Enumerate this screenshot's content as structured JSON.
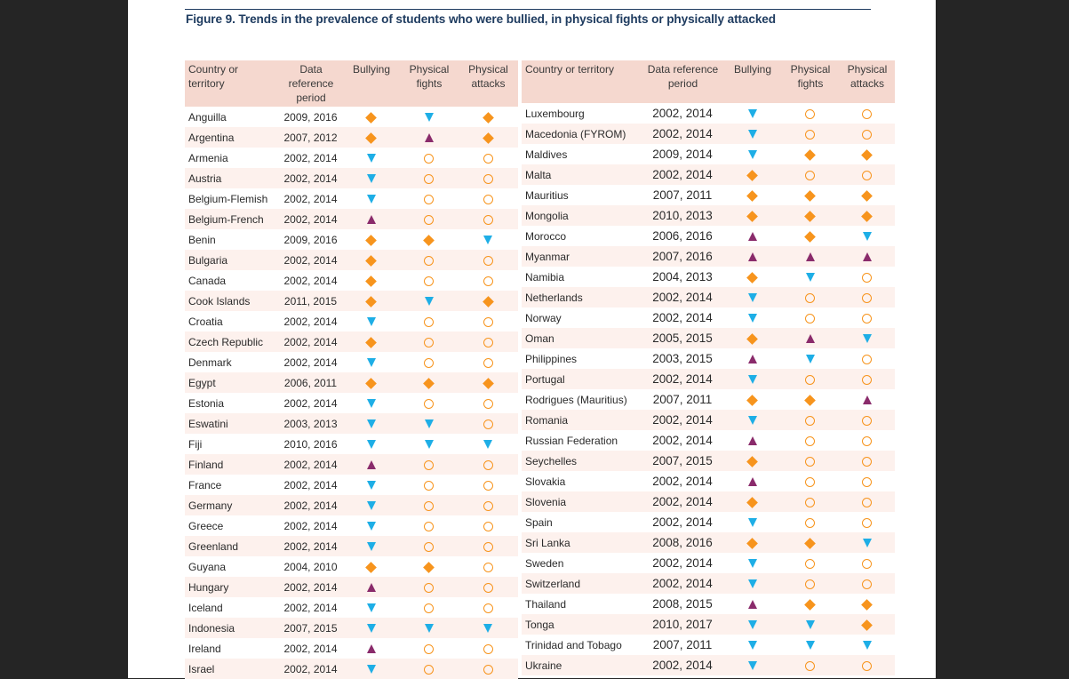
{
  "figure_title": "Figure 9. Trends in the prevalence of students who were bullied, in physical fights or physically attacked",
  "columns": {
    "country": "Country or territory",
    "period": "Data reference period",
    "bullying": "Bullying",
    "fights": "Physical fights",
    "attacks": "Physical attacks"
  },
  "symbol_icons": {
    "diamond": "orange-diamond-icon",
    "down": "blue-down-triangle-icon",
    "up": "purple-up-triangle-icon",
    "circle": "orange-open-circle-icon"
  },
  "colors": {
    "diamond": "#f7941d",
    "down": "#1eaee6",
    "up": "#8a2b6b",
    "circle": "#f7941d",
    "title": "#1f3c60",
    "header_bg": "#f5d8cf",
    "alt_row_bg": "#fdf1ed"
  },
  "left_rows": [
    {
      "country": "Anguilla",
      "period": "2009, 2016",
      "bullying": "diamond",
      "fights": "down",
      "attacks": "diamond"
    },
    {
      "country": "Argentina",
      "period": "2007, 2012",
      "bullying": "diamond",
      "fights": "up",
      "attacks": "diamond"
    },
    {
      "country": "Armenia",
      "period": "2002, 2014",
      "bullying": "down",
      "fights": "circle",
      "attacks": "circle"
    },
    {
      "country": "Austria",
      "period": "2002, 2014",
      "bullying": "down",
      "fights": "circle",
      "attacks": "circle"
    },
    {
      "country": "Belgium-Flemish",
      "period": "2002, 2014",
      "bullying": "down",
      "fights": "circle",
      "attacks": "circle"
    },
    {
      "country": "Belgium-French",
      "period": "2002, 2014",
      "bullying": "up",
      "fights": "circle",
      "attacks": "circle"
    },
    {
      "country": "Benin",
      "period": "2009, 2016",
      "bullying": "diamond",
      "fights": "diamond",
      "attacks": "down"
    },
    {
      "country": "Bulgaria",
      "period": "2002, 2014",
      "bullying": "diamond",
      "fights": "circle",
      "attacks": "circle"
    },
    {
      "country": "Canada",
      "period": "2002, 2014",
      "bullying": "diamond",
      "fights": "circle",
      "attacks": "circle"
    },
    {
      "country": "Cook Islands",
      "period": "2011, 2015",
      "bullying": "diamond",
      "fights": "down",
      "attacks": "diamond"
    },
    {
      "country": "Croatia",
      "period": "2002, 2014",
      "bullying": "down",
      "fights": "circle",
      "attacks": "circle"
    },
    {
      "country": "Czech Republic",
      "period": "2002, 2014",
      "bullying": "diamond",
      "fights": "circle",
      "attacks": "circle"
    },
    {
      "country": "Denmark",
      "period": "2002, 2014",
      "bullying": "down",
      "fights": "circle",
      "attacks": "circle"
    },
    {
      "country": "Egypt",
      "period": "2006, 2011",
      "bullying": "diamond",
      "fights": "diamond",
      "attacks": "diamond"
    },
    {
      "country": "Estonia",
      "period": "2002, 2014",
      "bullying": "down",
      "fights": "circle",
      "attacks": "circle"
    },
    {
      "country": "Eswatini",
      "period": "2003, 2013",
      "bullying": "down",
      "fights": "down",
      "attacks": "circle"
    },
    {
      "country": "Fiji",
      "period": "2010, 2016",
      "bullying": "down",
      "fights": "down",
      "attacks": "down"
    },
    {
      "country": "Finland",
      "period": "2002, 2014",
      "bullying": "up",
      "fights": "circle",
      "attacks": "circle"
    },
    {
      "country": "France",
      "period": "2002, 2014",
      "bullying": "down",
      "fights": "circle",
      "attacks": "circle"
    },
    {
      "country": "Germany",
      "period": "2002, 2014",
      "bullying": "down",
      "fights": "circle",
      "attacks": "circle"
    },
    {
      "country": "Greece",
      "period": "2002, 2014",
      "bullying": "down",
      "fights": "circle",
      "attacks": "circle"
    },
    {
      "country": "Greenland",
      "period": "2002, 2014",
      "bullying": "down",
      "fights": "circle",
      "attacks": "circle"
    },
    {
      "country": "Guyana",
      "period": "2004, 2010",
      "bullying": "diamond",
      "fights": "diamond",
      "attacks": "circle"
    },
    {
      "country": "Hungary",
      "period": "2002, 2014",
      "bullying": "up",
      "fights": "circle",
      "attacks": "circle"
    },
    {
      "country": "Iceland",
      "period": "2002, 2014",
      "bullying": "down",
      "fights": "circle",
      "attacks": "circle"
    },
    {
      "country": "Indonesia",
      "period": "2007, 2015",
      "bullying": "down",
      "fights": "down",
      "attacks": "down"
    },
    {
      "country": "Ireland",
      "period": "2002, 2014",
      "bullying": "up",
      "fights": "circle",
      "attacks": "circle"
    },
    {
      "country": "Israel",
      "period": "2002, 2014",
      "bullying": "down",
      "fights": "circle",
      "attacks": "circle"
    }
  ],
  "right_rows": [
    {
      "country": "Luxembourg",
      "period": "2002, 2014",
      "bullying": "down",
      "fights": "circle",
      "attacks": "circle"
    },
    {
      "country": "Macedonia (FYROM)",
      "period": "2002, 2014",
      "bullying": "down",
      "fights": "circle",
      "attacks": "circle"
    },
    {
      "country": "Maldives",
      "period": "2009, 2014",
      "bullying": "down",
      "fights": "diamond",
      "attacks": "diamond"
    },
    {
      "country": "Malta",
      "period": "2002, 2014",
      "bullying": "diamond",
      "fights": "circle",
      "attacks": "circle"
    },
    {
      "country": "Mauritius",
      "period": "2007, 2011",
      "bullying": "diamond",
      "fights": "diamond",
      "attacks": "diamond"
    },
    {
      "country": "Mongolia",
      "period": "2010, 2013",
      "bullying": "diamond",
      "fights": "diamond",
      "attacks": "diamond"
    },
    {
      "country": "Morocco",
      "period": "2006, 2016",
      "bullying": "up",
      "fights": "diamond",
      "attacks": "down"
    },
    {
      "country": "Myanmar",
      "period": "2007, 2016",
      "bullying": "up",
      "fights": "up",
      "attacks": "up"
    },
    {
      "country": "Namibia",
      "period": "2004, 2013",
      "bullying": "diamond",
      "fights": "down",
      "attacks": "circle"
    },
    {
      "country": "Netherlands",
      "period": "2002, 2014",
      "bullying": "down",
      "fights": "circle",
      "attacks": "circle"
    },
    {
      "country": "Norway",
      "period": "2002, 2014",
      "bullying": "down",
      "fights": "circle",
      "attacks": "circle"
    },
    {
      "country": "Oman",
      "period": "2005, 2015",
      "bullying": "diamond",
      "fights": "up",
      "attacks": "down"
    },
    {
      "country": "Philippines",
      "period": "2003, 2015",
      "bullying": "up",
      "fights": "down",
      "attacks": "circle"
    },
    {
      "country": "Portugal",
      "period": "2002, 2014",
      "bullying": "down",
      "fights": "circle",
      "attacks": "circle"
    },
    {
      "country": "Rodrigues (Mauritius)",
      "period": "2007, 2011",
      "bullying": "diamond",
      "fights": "diamond",
      "attacks": "up"
    },
    {
      "country": "Romania",
      "period": "2002, 2014",
      "bullying": "down",
      "fights": "circle",
      "attacks": "circle"
    },
    {
      "country": "Russian Federation",
      "period": "2002, 2014",
      "bullying": "up",
      "fights": "circle",
      "attacks": "circle"
    },
    {
      "country": "Seychelles",
      "period": "2007, 2015",
      "bullying": "diamond",
      "fights": "circle",
      "attacks": "circle"
    },
    {
      "country": "Slovakia",
      "period": "2002, 2014",
      "bullying": "up",
      "fights": "circle",
      "attacks": "circle"
    },
    {
      "country": "Slovenia",
      "period": "2002, 2014",
      "bullying": "diamond",
      "fights": "circle",
      "attacks": "circle"
    },
    {
      "country": "Spain",
      "period": "2002, 2014",
      "bullying": "down",
      "fights": "circle",
      "attacks": "circle"
    },
    {
      "country": "Sri Lanka",
      "period": "2008, 2016",
      "bullying": "diamond",
      "fights": "diamond",
      "attacks": "down"
    },
    {
      "country": "Sweden",
      "period": "2002, 2014",
      "bullying": "down",
      "fights": "circle",
      "attacks": "circle"
    },
    {
      "country": "Switzerland",
      "period": "2002, 2014",
      "bullying": "down",
      "fights": "circle",
      "attacks": "circle"
    },
    {
      "country": "Thailand",
      "period": "2008, 2015",
      "bullying": "up",
      "fights": "diamond",
      "attacks": "diamond"
    },
    {
      "country": "Tonga",
      "period": "2010, 2017",
      "bullying": "down",
      "fights": "down",
      "attacks": "diamond"
    },
    {
      "country": "Trinidad and Tobago",
      "period": "2007, 2011",
      "bullying": "down",
      "fights": "down",
      "attacks": "down"
    },
    {
      "country": "Ukraine",
      "period": "2002, 2014",
      "bullying": "down",
      "fights": "circle",
      "attacks": "circle"
    }
  ]
}
